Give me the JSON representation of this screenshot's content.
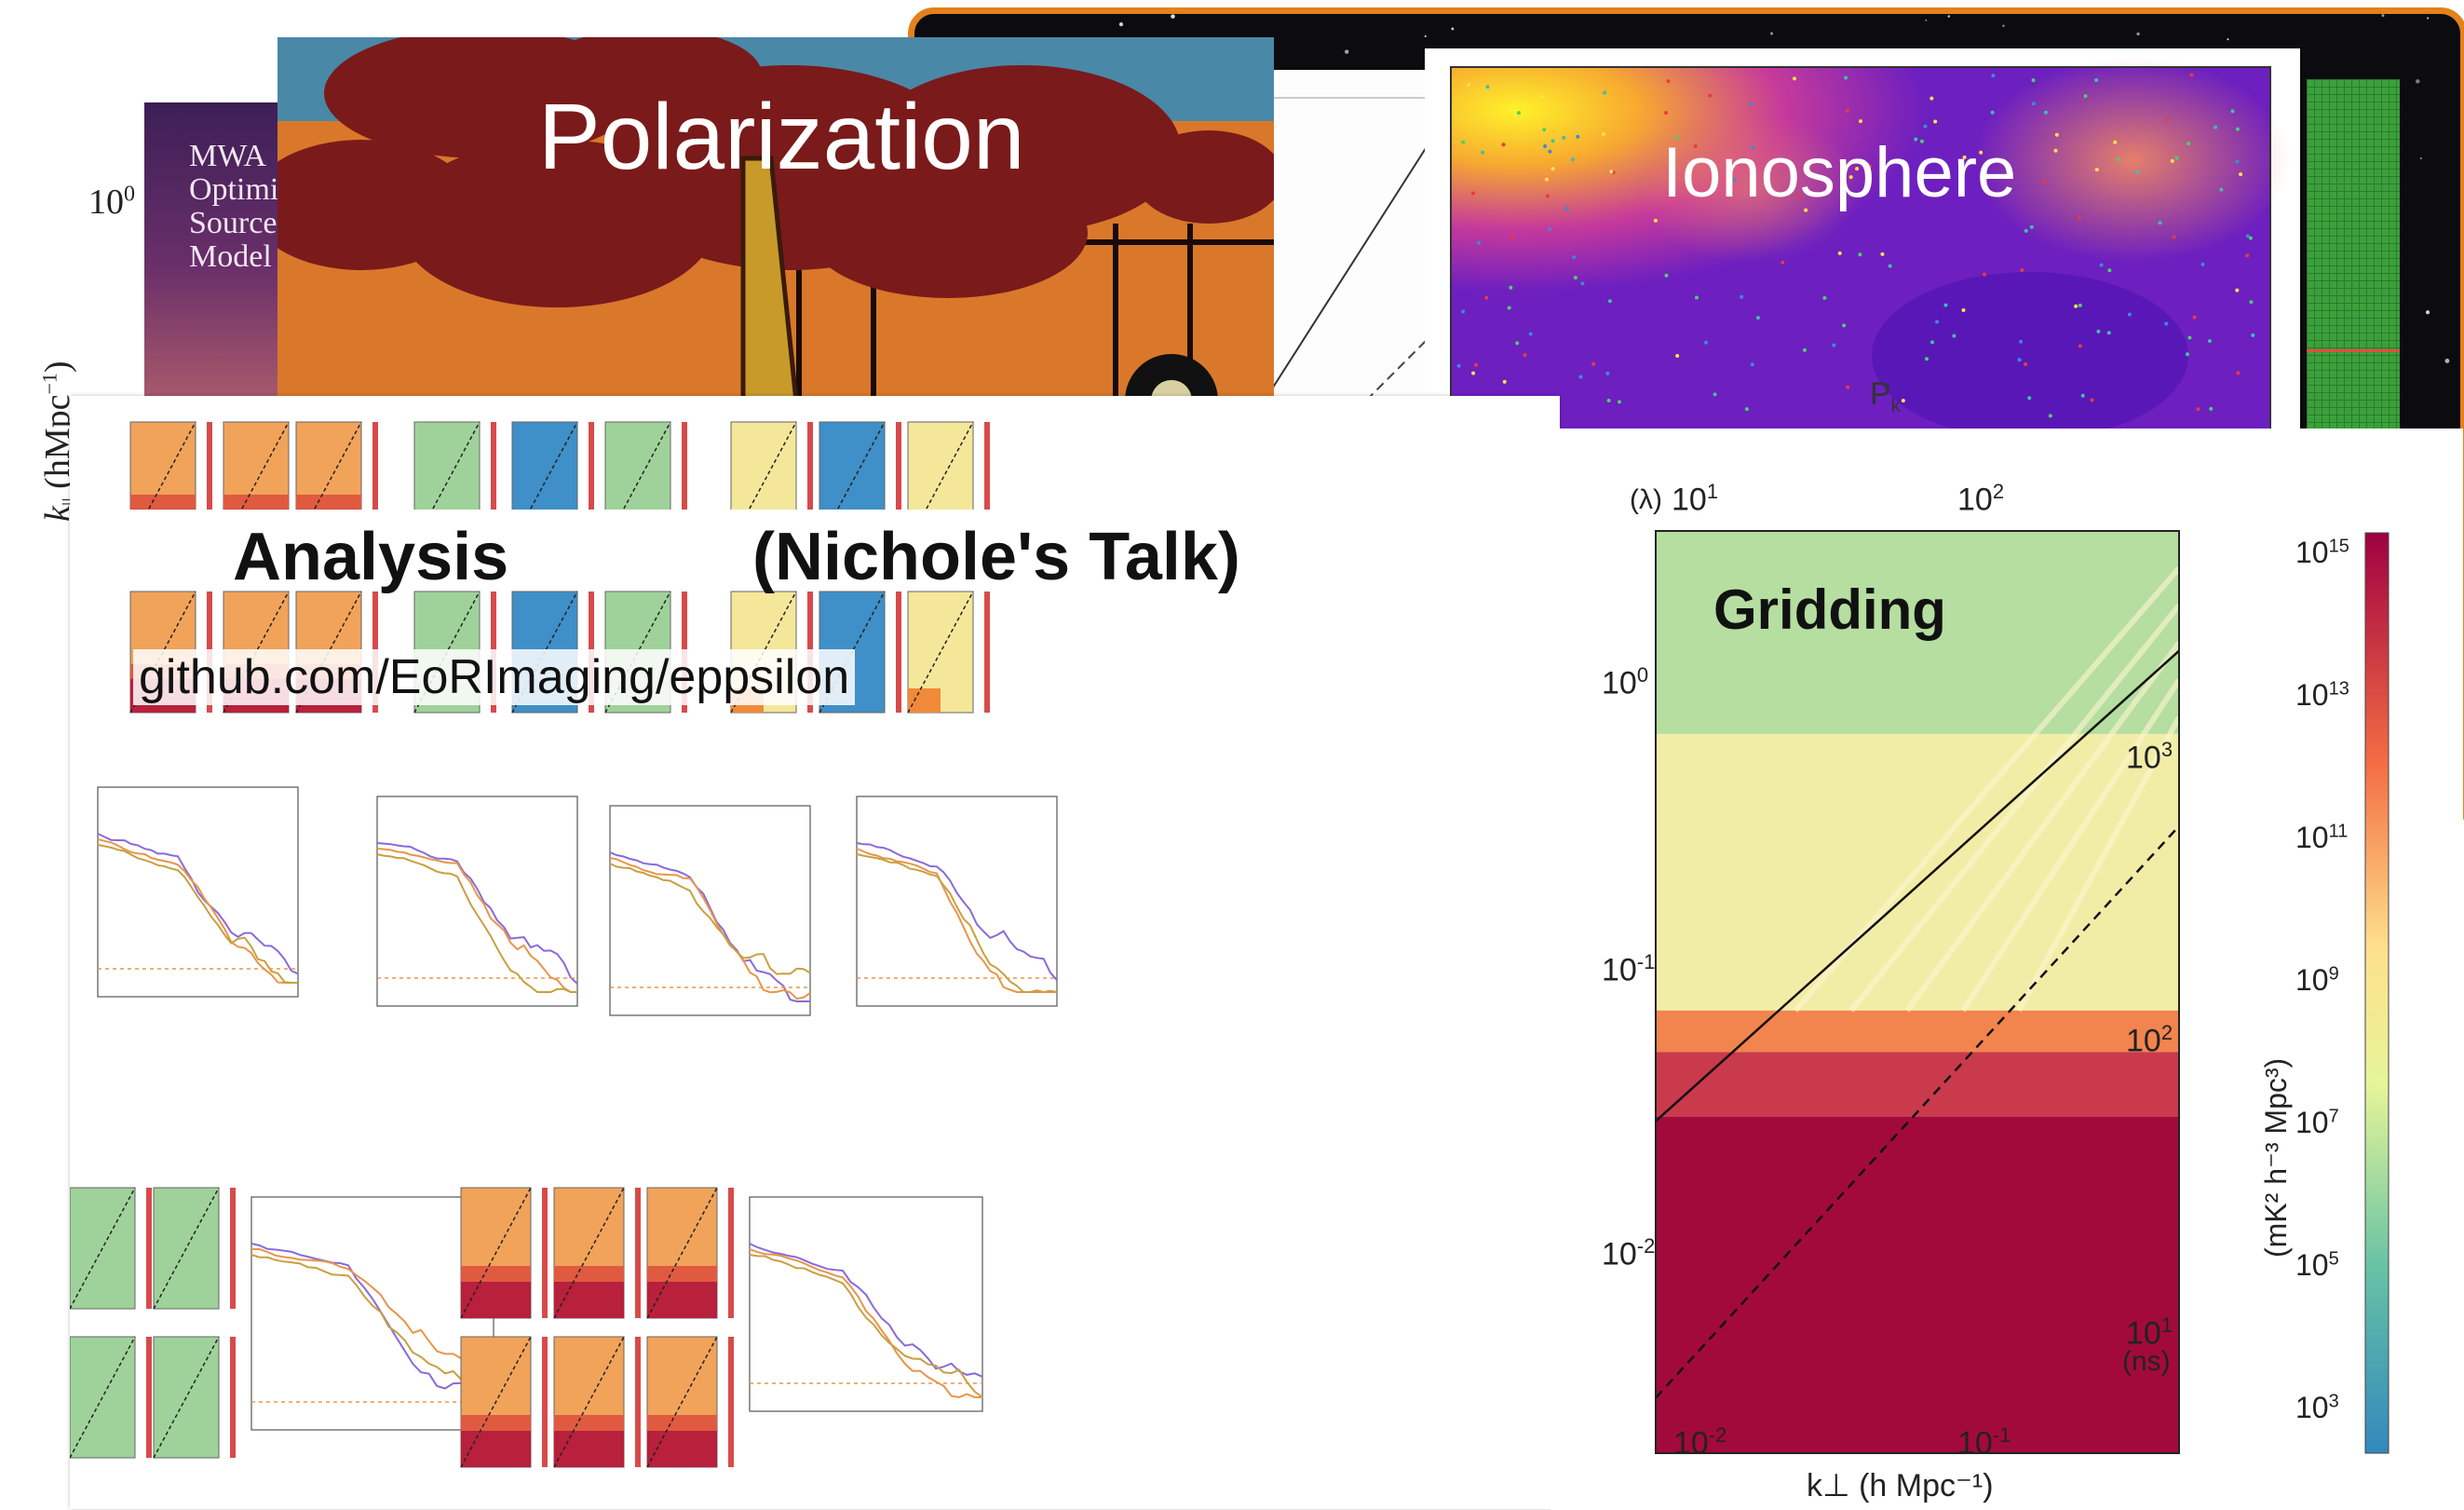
{
  "cards": {
    "mwa": {
      "lines": [
        "MWA",
        "Optimi",
        "Source",
        "Model"
      ],
      "tick_10_base": "10",
      "tick_10_exp": "0",
      "axis_k": "k",
      "axis_sub": "||",
      "axis_units": "(hMpc",
      "axis_exp": "−1",
      "axis_close": ")"
    },
    "polarization": {
      "title": "Polarization"
    },
    "ionosphere": {
      "title": "Ionosphere",
      "pk_label": "P",
      "pk_sub": "k"
    },
    "analysis": {
      "title": "Analysis",
      "subtitle": "(Nichole's Talk)",
      "repo": "github.com/EoRImaging/eppsilon"
    },
    "gridding": {
      "title": "Gridding",
      "top_unit": "(λ)",
      "top_ticks": [
        {
          "b": "10",
          "e": "1"
        },
        {
          "b": "10",
          "e": "2"
        }
      ],
      "left_ticks": [
        {
          "b": "10",
          "e": "0"
        },
        {
          "b": "10",
          "e": "-1"
        },
        {
          "b": "10",
          "e": "-2"
        }
      ],
      "right_ticks": [
        {
          "b": "10",
          "e": "3"
        },
        {
          "b": "10",
          "e": "2"
        },
        {
          "b": "10",
          "e": "1"
        }
      ],
      "right_unit": "(ns)",
      "bottom_ticks": [
        {
          "b": "10",
          "e": "-2"
        },
        {
          "b": "10",
          "e": "-1"
        }
      ],
      "xlabel": "k⊥ (h Mpc⁻¹)",
      "colorbar_label": "(mK² h⁻³ Mpc³)",
      "colorbar_ticks": [
        {
          "b": "10",
          "e": "15"
        },
        {
          "b": "10",
          "e": "13"
        },
        {
          "b": "10",
          "e": "11"
        },
        {
          "b": "10",
          "e": "9"
        },
        {
          "b": "10",
          "e": "7"
        },
        {
          "b": "10",
          "e": "5"
        },
        {
          "b": "10",
          "e": "3"
        }
      ],
      "colors": {
        "deep": "#a30a3c",
        "red": "#c93a4c",
        "orange": "#f2844e",
        "pale": "#fbf0a8",
        "green": "#b5dea0"
      }
    }
  }
}
